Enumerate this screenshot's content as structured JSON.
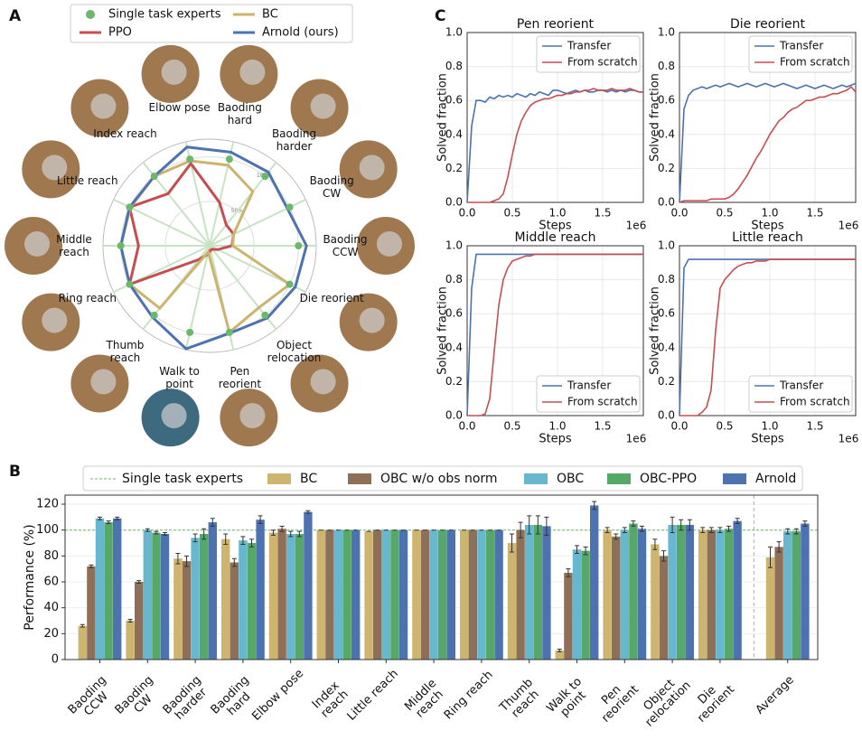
{
  "chart_data": [
    {
      "panel": "A",
      "type": "radar",
      "categories": [
        "Elbow pose",
        "Baoding hard",
        "Baoding harder",
        "Baoding CW",
        "Baoding CCW",
        "Die reorient",
        "Object relocation",
        "Pen reorient",
        "Walk to point",
        "Thumb reach",
        "Ring reach",
        "Middle reach",
        "Little reach",
        "Index reach"
      ],
      "rlim": [
        0,
        120
      ],
      "rticks": [
        {
          "value": 50,
          "label": "50%"
        },
        {
          "value": 100,
          "label": "100%"
        }
      ],
      "series": [
        {
          "name": "Single task experts",
          "color": "#6ab86a",
          "marker": "dot",
          "values": [
            100,
            100,
            100,
            100,
            100,
            100,
            100,
            100,
            100,
            100,
            100,
            100,
            100,
            100
          ]
        },
        {
          "name": "PPO",
          "color": "#c44e52",
          "values": [
            95,
            50,
            30,
            30,
            25,
            10,
            5,
            5,
            10,
            20,
            100,
            80,
            100,
            75
          ]
        },
        {
          "name": "BC",
          "color": "#ccb46e",
          "values": [
            98,
            93,
            78,
            30,
            26,
            100,
            89,
            100,
            7,
            90,
            100,
            100,
            99,
            100
          ]
        },
        {
          "name": "Arnold (ours)",
          "color": "#4c72b0",
          "values": [
            114,
            108,
            106,
            97,
            109,
            107,
            104,
            101,
            119,
            103,
            100,
            100,
            100,
            100
          ]
        }
      ]
    },
    {
      "panel": "C",
      "type": "line",
      "title": "Pen reorient",
      "xlabel": "Steps",
      "x_offset_label": "1e6",
      "ylabel": "Solved fraction",
      "grid": true,
      "legend": "upper right",
      "xlim": [
        0,
        1.95
      ],
      "ylim": [
        0,
        1
      ],
      "xticks": [
        {
          "value": 0,
          "label": "0.0"
        },
        {
          "value": 0.5,
          "label": "0.5"
        },
        {
          "value": 1,
          "label": "1.0"
        },
        {
          "value": 1.5,
          "label": "1.5"
        }
      ],
      "yticks": [
        {
          "value": 0,
          "label": "0.0"
        },
        0.2,
        0.4,
        0.6,
        0.8,
        {
          "value": 1,
          "label": "1.0"
        }
      ],
      "x": [
        0,
        0.05,
        0.1,
        0.15,
        0.2,
        0.25,
        0.3,
        0.35,
        0.4,
        0.45,
        0.5,
        0.55,
        0.6,
        0.65,
        0.7,
        0.75,
        0.8,
        0.85,
        0.9,
        0.95,
        1,
        1.05,
        1.1,
        1.15,
        1.2,
        1.25,
        1.3,
        1.35,
        1.4,
        1.45,
        1.5,
        1.55,
        1.6,
        1.65,
        1.7,
        1.75,
        1.8,
        1.85,
        1.9,
        1.95
      ],
      "series": [
        {
          "name": "Transfer",
          "color": "#4c72b0",
          "values": [
            0,
            0.45,
            0.6,
            0.6,
            0.59,
            0.62,
            0.61,
            0.63,
            0.62,
            0.63,
            0.62,
            0.64,
            0.63,
            0.62,
            0.64,
            0.63,
            0.65,
            0.64,
            0.63,
            0.66,
            0.66,
            0.65,
            0.64,
            0.65,
            0.66,
            0.65,
            0.66,
            0.65,
            0.65,
            0.66,
            0.66,
            0.65,
            0.66,
            0.65,
            0.66,
            0.65,
            0.66,
            0.66,
            0.65,
            0.65
          ]
        },
        {
          "name": "From scratch",
          "color": "#c44e52",
          "values": [
            0,
            0,
            0,
            0,
            0,
            0,
            0.01,
            0.02,
            0.05,
            0.15,
            0.28,
            0.4,
            0.48,
            0.53,
            0.57,
            0.59,
            0.6,
            0.61,
            0.61,
            0.62,
            0.63,
            0.63,
            0.64,
            0.64,
            0.65,
            0.65,
            0.66,
            0.66,
            0.67,
            0.66,
            0.66,
            0.66,
            0.67,
            0.66,
            0.66,
            0.66,
            0.67,
            0.66,
            0.65,
            0.65
          ]
        }
      ]
    },
    {
      "type": "line",
      "title": "Die reorient",
      "xlabel": "Steps",
      "x_offset_label": "1e6",
      "ylabel": "Solved fraction",
      "grid": true,
      "legend": "upper right",
      "xlim": [
        0,
        1.95
      ],
      "ylim": [
        0,
        1
      ],
      "xticks": [
        {
          "value": 0,
          "label": "0.0"
        },
        {
          "value": 0.5,
          "label": "0.5"
        },
        {
          "value": 1,
          "label": "1.0"
        },
        {
          "value": 1.5,
          "label": "1.5"
        }
      ],
      "yticks": [
        {
          "value": 0,
          "label": "0.0"
        },
        0.2,
        0.4,
        0.6,
        0.8,
        {
          "value": 1,
          "label": "1.0"
        }
      ],
      "x": [
        0,
        0.05,
        0.1,
        0.15,
        0.2,
        0.25,
        0.3,
        0.35,
        0.4,
        0.45,
        0.5,
        0.55,
        0.6,
        0.65,
        0.7,
        0.75,
        0.8,
        0.85,
        0.9,
        0.95,
        1,
        1.05,
        1.1,
        1.15,
        1.2,
        1.25,
        1.3,
        1.35,
        1.4,
        1.45,
        1.5,
        1.55,
        1.6,
        1.65,
        1.7,
        1.75,
        1.8,
        1.85,
        1.9,
        1.95
      ],
      "series": [
        {
          "name": "Transfer",
          "color": "#4c72b0",
          "values": [
            0,
            0.55,
            0.63,
            0.66,
            0.67,
            0.68,
            0.67,
            0.68,
            0.69,
            0.68,
            0.69,
            0.7,
            0.69,
            0.68,
            0.69,
            0.7,
            0.69,
            0.68,
            0.69,
            0.7,
            0.69,
            0.68,
            0.69,
            0.7,
            0.69,
            0.68,
            0.67,
            0.68,
            0.69,
            0.68,
            0.67,
            0.68,
            0.69,
            0.68,
            0.67,
            0.68,
            0.69,
            0.68,
            0.69,
            0.7
          ]
        },
        {
          "name": "From scratch",
          "color": "#c44e52",
          "values": [
            0,
            0.01,
            0.01,
            0.01,
            0.01,
            0.01,
            0.01,
            0.02,
            0.02,
            0.02,
            0.02,
            0.03,
            0.05,
            0.08,
            0.12,
            0.16,
            0.21,
            0.26,
            0.3,
            0.35,
            0.4,
            0.44,
            0.48,
            0.5,
            0.53,
            0.55,
            0.56,
            0.58,
            0.6,
            0.6,
            0.61,
            0.62,
            0.62,
            0.63,
            0.64,
            0.64,
            0.65,
            0.66,
            0.68,
            0.65
          ]
        }
      ]
    },
    {
      "type": "line",
      "title": "Middle reach",
      "xlabel": "Steps",
      "x_offset_label": "1e6",
      "ylabel": "Solved fraction",
      "grid": true,
      "legend": "lower right",
      "xlim": [
        0,
        1.95
      ],
      "ylim": [
        0,
        1
      ],
      "xticks": [
        {
          "value": 0,
          "label": "0.0"
        },
        {
          "value": 0.5,
          "label": "0.5"
        },
        {
          "value": 1,
          "label": "1.0"
        },
        {
          "value": 1.5,
          "label": "1.5"
        }
      ],
      "yticks": [
        {
          "value": 0,
          "label": "0.0"
        },
        0.2,
        0.4,
        0.6,
        0.8,
        {
          "value": 1,
          "label": "1.0"
        }
      ],
      "x": [
        0,
        0.05,
        0.1,
        0.15,
        0.2,
        0.25,
        0.3,
        0.35,
        0.4,
        0.45,
        0.5,
        0.55,
        0.6,
        0.65,
        0.7,
        0.75,
        0.8,
        0.85,
        0.9,
        0.95,
        1,
        1.05,
        1.1,
        1.15,
        1.2,
        1.25,
        1.3,
        1.35,
        1.4,
        1.45,
        1.5,
        1.55,
        1.6,
        1.65,
        1.7,
        1.75,
        1.8,
        1.85,
        1.9,
        1.95
      ],
      "series": [
        {
          "name": "Transfer",
          "color": "#4c72b0",
          "values": [
            0,
            0.75,
            0.95,
            0.95,
            0.95,
            0.95,
            0.95,
            0.95,
            0.95,
            0.95,
            0.95,
            0.95,
            0.95,
            0.95,
            0.95,
            0.95,
            0.95,
            0.95,
            0.95,
            0.95,
            0.95,
            0.95,
            0.95,
            0.95,
            0.95,
            0.95,
            0.95,
            0.95,
            0.95,
            0.95,
            0.95,
            0.95,
            0.95,
            0.95,
            0.95,
            0.95,
            0.95,
            0.95,
            0.95,
            0.95
          ]
        },
        {
          "name": "From scratch",
          "color": "#c44e52",
          "values": [
            0,
            0,
            0,
            0,
            0.01,
            0.1,
            0.38,
            0.65,
            0.8,
            0.87,
            0.91,
            0.92,
            0.93,
            0.94,
            0.94,
            0.95,
            0.95,
            0.95,
            0.95,
            0.95,
            0.95,
            0.95,
            0.95,
            0.95,
            0.95,
            0.95,
            0.95,
            0.95,
            0.95,
            0.95,
            0.95,
            0.95,
            0.95,
            0.95,
            0.95,
            0.95,
            0.95,
            0.95,
            0.95,
            0.95
          ]
        }
      ]
    },
    {
      "type": "line",
      "title": "Little reach",
      "xlabel": "Steps",
      "x_offset_label": "1e6",
      "ylabel": "Solved fraction",
      "grid": true,
      "legend": "lower right",
      "xlim": [
        0,
        1.95
      ],
      "ylim": [
        0,
        1
      ],
      "xticks": [
        {
          "value": 0,
          "label": "0.0"
        },
        {
          "value": 0.5,
          "label": "0.5"
        },
        {
          "value": 1,
          "label": "1.0"
        },
        {
          "value": 1.5,
          "label": "1.5"
        }
      ],
      "yticks": [
        {
          "value": 0,
          "label": "0.0"
        },
        0.2,
        0.4,
        0.6,
        0.8,
        {
          "value": 1,
          "label": "1.0"
        }
      ],
      "x": [
        0,
        0.05,
        0.1,
        0.15,
        0.2,
        0.25,
        0.3,
        0.35,
        0.4,
        0.45,
        0.5,
        0.55,
        0.6,
        0.65,
        0.7,
        0.75,
        0.8,
        0.85,
        0.9,
        0.95,
        1,
        1.05,
        1.1,
        1.15,
        1.2,
        1.25,
        1.3,
        1.35,
        1.4,
        1.45,
        1.5,
        1.55,
        1.6,
        1.65,
        1.7,
        1.75,
        1.8,
        1.85,
        1.9,
        1.95
      ],
      "series": [
        {
          "name": "Transfer",
          "color": "#4c72b0",
          "values": [
            0,
            0.87,
            0.92,
            0.92,
            0.92,
            0.92,
            0.92,
            0.92,
            0.92,
            0.92,
            0.92,
            0.92,
            0.92,
            0.92,
            0.92,
            0.92,
            0.92,
            0.92,
            0.92,
            0.92,
            0.92,
            0.92,
            0.92,
            0.92,
            0.92,
            0.92,
            0.92,
            0.92,
            0.92,
            0.92,
            0.92,
            0.92,
            0.92,
            0.92,
            0.92,
            0.92,
            0.92,
            0.92,
            0.92,
            0.92
          ]
        },
        {
          "name": "From scratch",
          "color": "#c44e52",
          "values": [
            0,
            0,
            0,
            0,
            0,
            0.02,
            0.05,
            0.15,
            0.5,
            0.75,
            0.8,
            0.83,
            0.86,
            0.88,
            0.89,
            0.9,
            0.9,
            0.91,
            0.91,
            0.91,
            0.92,
            0.92,
            0.92,
            0.92,
            0.92,
            0.92,
            0.92,
            0.92,
            0.92,
            0.92,
            0.92,
            0.92,
            0.92,
            0.92,
            0.92,
            0.92,
            0.92,
            0.92,
            0.92,
            0.92
          ]
        }
      ]
    },
    {
      "panel": "B",
      "type": "bar",
      "ylabel": "Performance (%)",
      "categories": [
        "Baoding CCW",
        "Baoding CW",
        "Baoding harder",
        "Baoding hard",
        "Elbow pose",
        "Index reach",
        "Little reach",
        "Middle reach",
        "Ring reach",
        "Thumb reach",
        "Walk to point",
        "Pen reorient",
        "Object relocation",
        "Die reorient",
        "Average"
      ],
      "ylim": [
        0,
        127
      ],
      "yticks": [
        0,
        20,
        40,
        60,
        80,
        100,
        120
      ],
      "grid": true,
      "reference": {
        "name": "Single task experts",
        "value": 100,
        "color": "#6ab86a"
      },
      "series": [
        {
          "name": "BC",
          "color": "#cdb56f",
          "values": [
            26,
            30,
            78,
            93,
            98,
            100,
            99,
            100,
            100,
            90,
            7,
            100,
            89,
            100,
            79
          ],
          "errors": [
            1,
            1,
            4,
            4,
            2,
            0,
            0,
            0,
            0,
            7,
            1,
            2,
            4,
            2,
            8
          ]
        },
        {
          "name": "OBC w/o obs norm",
          "color": "#8e7058",
          "values": [
            72,
            60,
            76,
            75,
            101,
            100,
            100,
            100,
            100,
            100,
            67,
            95,
            80,
            100,
            87
          ],
          "errors": [
            1,
            1,
            4,
            3,
            2,
            0,
            0,
            0,
            0,
            6,
            3,
            2,
            4,
            2,
            4
          ]
        },
        {
          "name": "OBC",
          "color": "#67b7cf",
          "values": [
            109,
            100,
            94,
            92,
            97,
            100,
            100,
            100,
            100,
            104,
            85,
            100,
            104,
            100,
            99
          ],
          "errors": [
            1,
            1,
            3,
            3,
            2,
            0,
            0,
            0,
            0,
            7,
            3,
            2,
            6,
            2,
            2
          ]
        },
        {
          "name": "OBC-PPO",
          "color": "#55a868",
          "values": [
            106,
            98,
            97,
            90,
            97,
            100,
            100,
            100,
            100,
            104,
            84,
            105,
            104,
            101,
            99
          ],
          "errors": [
            1,
            1,
            4,
            3,
            2,
            0,
            0,
            0,
            0,
            7,
            3,
            2,
            4,
            2,
            2
          ]
        },
        {
          "name": "Arnold",
          "color": "#4c72b0",
          "values": [
            109,
            97,
            106,
            108,
            114,
            100,
            100,
            100,
            100,
            103,
            119,
            101,
            104,
            107,
            105
          ],
          "errors": [
            1,
            1,
            3,
            3,
            1,
            0,
            0,
            0,
            0,
            7,
            3,
            2,
            4,
            2,
            2
          ]
        }
      ]
    }
  ]
}
